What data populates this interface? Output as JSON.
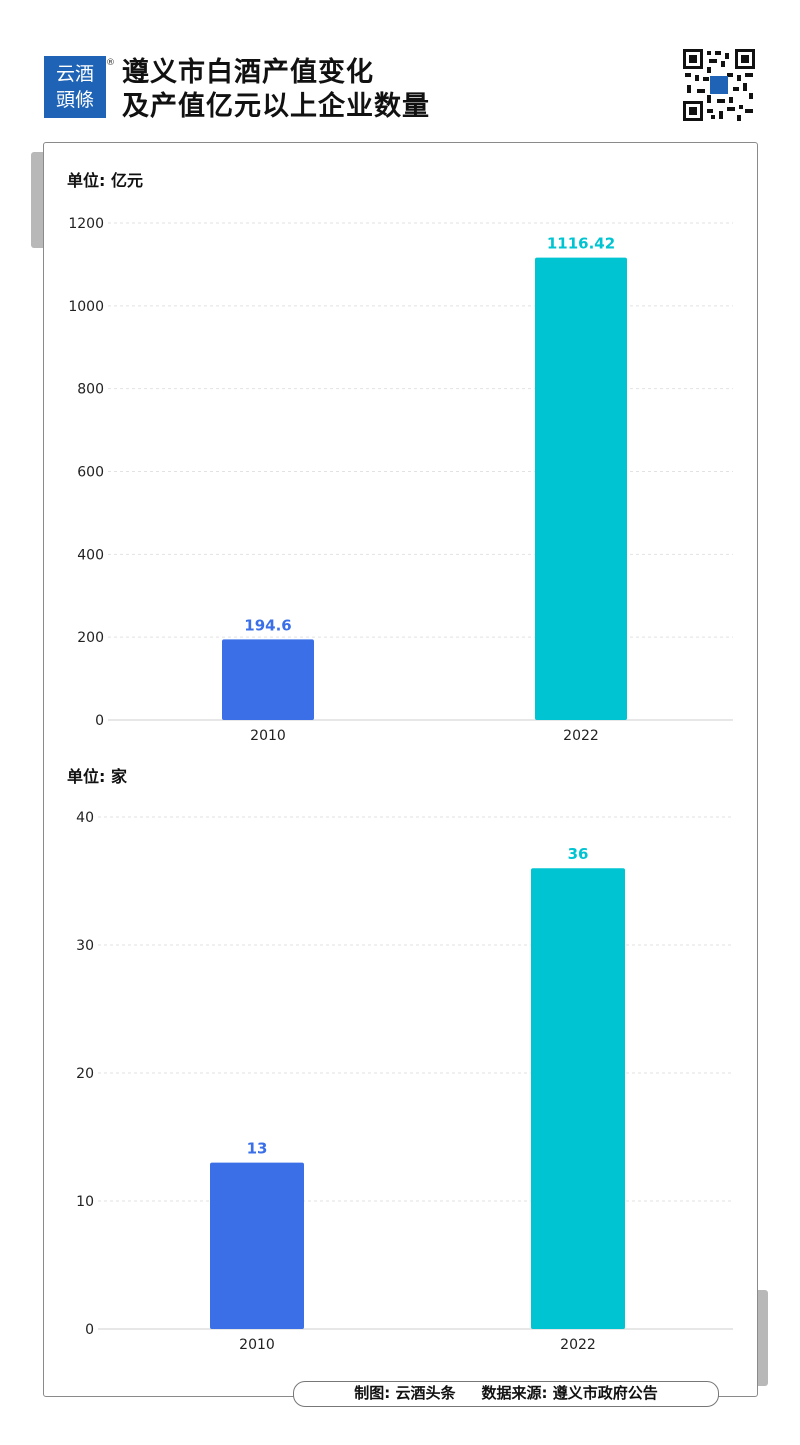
{
  "header": {
    "logo_line1": "云酒",
    "logo_line2": "頭條",
    "logo_mark": "®",
    "title_line1": "遵义市白酒产值变化",
    "title_line2": "及产值亿元以上企业数量"
  },
  "colors": {
    "series_2010": "#3b6fe8",
    "series_2022": "#00c4d2",
    "brand": "#1e63b5"
  },
  "chart_data": [
    {
      "type": "bar",
      "unit_label": "单位: 亿元",
      "categories": [
        "2010",
        "2022"
      ],
      "values": [
        194.6,
        1116.42
      ],
      "value_labels": [
        "194.6",
        "1116.42"
      ],
      "bar_colors": [
        "#3b6fe8",
        "#00c4d2"
      ],
      "ylim": [
        0,
        1200
      ],
      "yticks": [
        0,
        200,
        400,
        600,
        800,
        1000,
        1200
      ],
      "ytick_labels": [
        "0",
        "200",
        "400",
        "600",
        "800",
        "1000",
        "1200"
      ],
      "grid": true
    },
    {
      "type": "bar",
      "unit_label": "单位: 家",
      "categories": [
        "2010",
        "2022"
      ],
      "values": [
        13,
        36
      ],
      "value_labels": [
        "13",
        "36"
      ],
      "bar_colors": [
        "#3b6fe8",
        "#00c4d2"
      ],
      "ylim": [
        0,
        40
      ],
      "yticks": [
        0,
        10,
        20,
        30,
        40
      ],
      "ytick_labels": [
        "0",
        "10",
        "20",
        "30",
        "40"
      ],
      "grid": true
    }
  ],
  "footer": {
    "credit": "制图: 云酒头条     数据来源: 遵义市政府公告"
  }
}
